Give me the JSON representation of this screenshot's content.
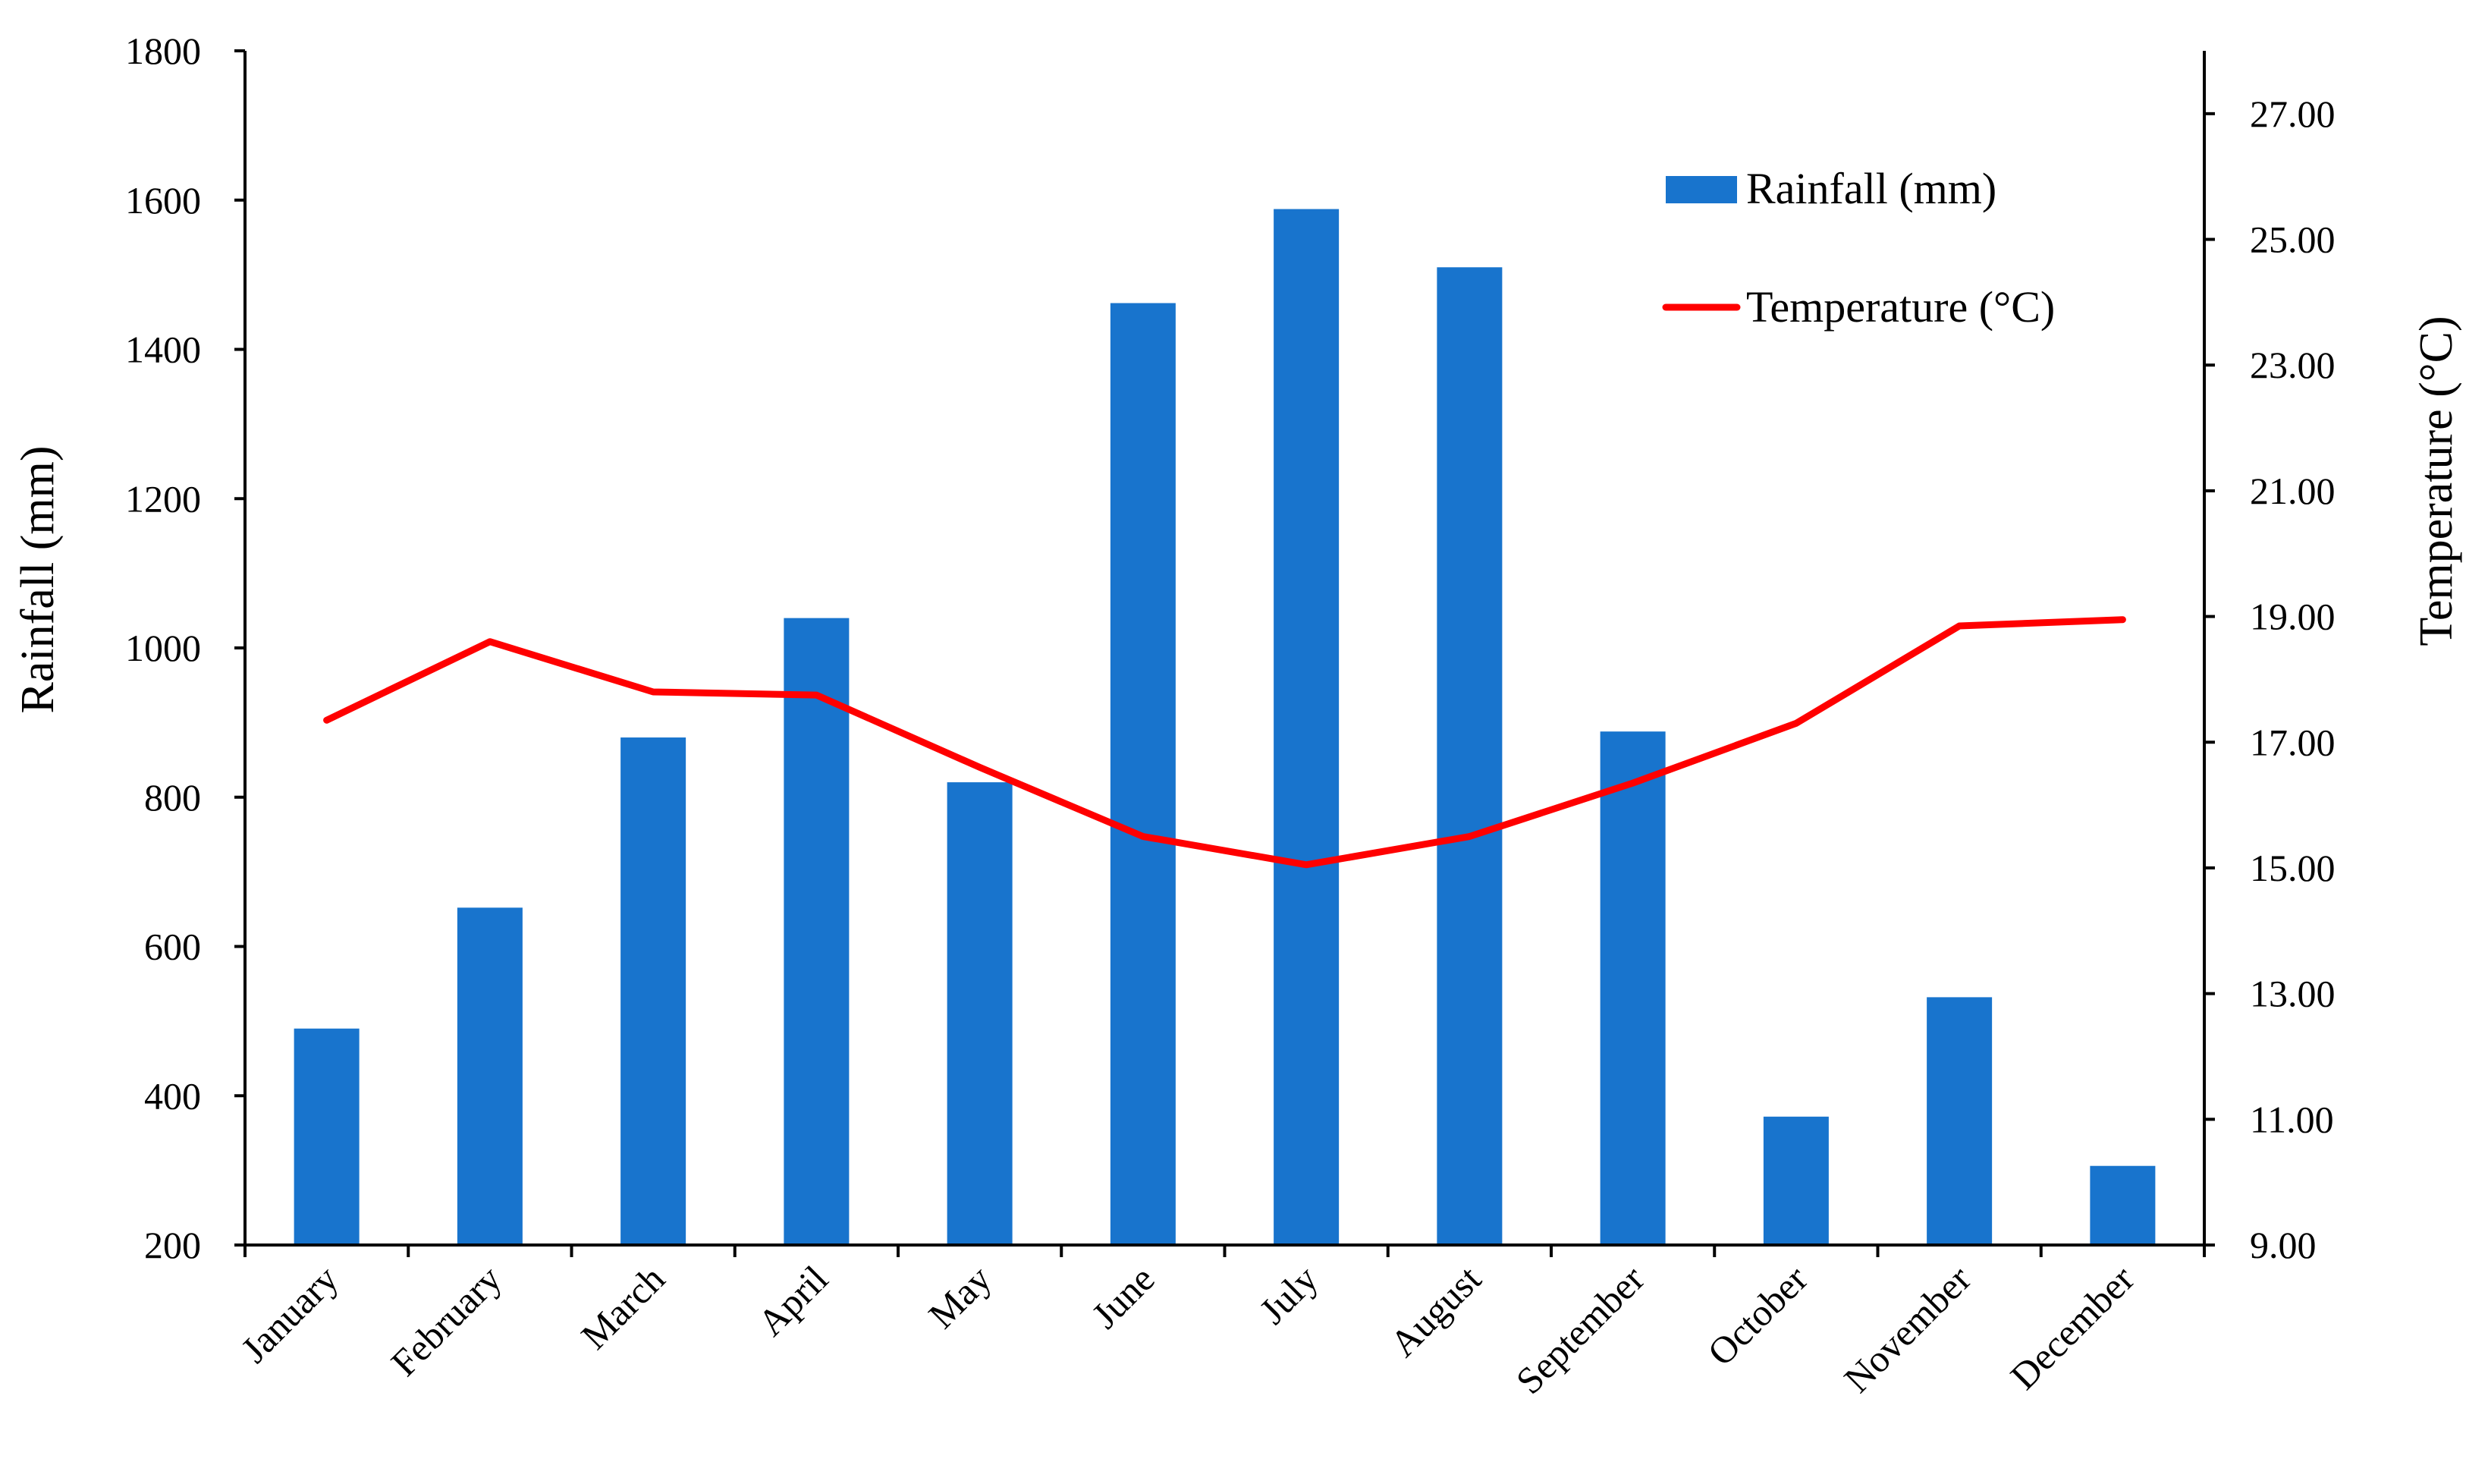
{
  "chart_data": {
    "type": "bar+line",
    "categories": [
      "January",
      "February",
      "March",
      "April",
      "May",
      "June",
      "July",
      "August",
      "September",
      "October",
      "November",
      "December"
    ],
    "series": [
      {
        "name": "Rainfall (mm)",
        "type": "bar",
        "axis": "left",
        "color": "#1874CD",
        "values": [
          490,
          652,
          880,
          1040,
          820,
          1462,
          1588,
          1510,
          888,
          372,
          532,
          306
        ]
      },
      {
        "name": "Temperature (°C)",
        "type": "line",
        "axis": "right",
        "color": "#FF0000",
        "values": [
          17.35,
          18.6,
          17.8,
          17.75,
          16.6,
          15.5,
          15.05,
          15.5,
          16.35,
          17.3,
          18.85,
          18.95
        ]
      }
    ],
    "left_axis": {
      "title": "Rainfall (mm)",
      "min": 200,
      "max": 1800,
      "ticks": [
        "200",
        "400",
        "600",
        "800",
        "1000",
        "1200",
        "1400",
        "1600",
        "1800"
      ]
    },
    "right_axis": {
      "title": "Temperature (°C)",
      "min": 9.0,
      "max": 28.0,
      "ticks": [
        "9.00",
        "11.00",
        "13.00",
        "15.00",
        "17.00",
        "19.00",
        "21.00",
        "23.00",
        "25.00",
        "27.00"
      ]
    },
    "legend": {
      "position": "top-right",
      "items": [
        {
          "label": "Rainfall (mm)",
          "symbol": "bar-swatch"
        },
        {
          "label": "Temperature (°C)",
          "symbol": "line-swatch"
        }
      ]
    },
    "grid": false
  }
}
